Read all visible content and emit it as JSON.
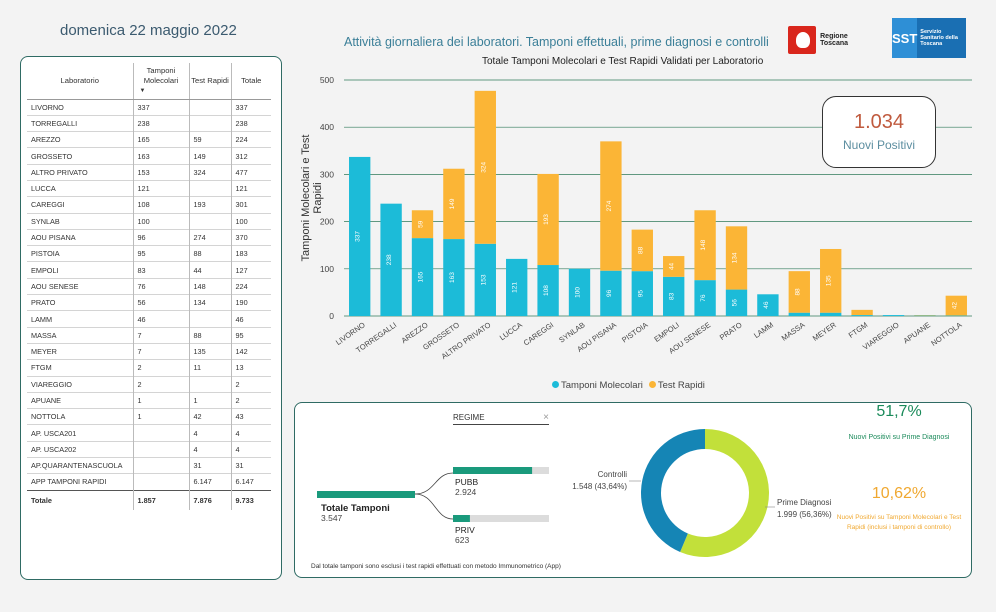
{
  "header": {
    "date": "domenica 22 maggio 2022",
    "title": "Attività giornaliera dei laboratori. Tamponi effettuali, prime diagnosi e controlli",
    "logo_regione": "Regione Toscana",
    "logo_sst_short": "SST",
    "logo_sst_long": "Servizio Sanitario della Toscana"
  },
  "table": {
    "headers": {
      "lab": "Laboratorio",
      "mol": "Tamponi Molecolari",
      "rap": "Test Rapidi",
      "tot": "Totale"
    },
    "rows": [
      [
        "LIVORNO",
        "337",
        "",
        "337"
      ],
      [
        "TORREGALLI",
        "238",
        "",
        "238"
      ],
      [
        "AREZZO",
        "165",
        "59",
        "224"
      ],
      [
        "GROSSETO",
        "163",
        "149",
        "312"
      ],
      [
        "ALTRO PRIVATO",
        "153",
        "324",
        "477"
      ],
      [
        "LUCCA",
        "121",
        "",
        "121"
      ],
      [
        "CAREGGI",
        "108",
        "193",
        "301"
      ],
      [
        "SYNLAB",
        "100",
        "",
        "100"
      ],
      [
        "AOU PISANA",
        "96",
        "274",
        "370"
      ],
      [
        "PISTOIA",
        "95",
        "88",
        "183"
      ],
      [
        "EMPOLI",
        "83",
        "44",
        "127"
      ],
      [
        "AOU SENESE",
        "76",
        "148",
        "224"
      ],
      [
        "PRATO",
        "56",
        "134",
        "190"
      ],
      [
        "LAMM",
        "46",
        "",
        "46"
      ],
      [
        "MASSA",
        "7",
        "88",
        "95"
      ],
      [
        "MEYER",
        "7",
        "135",
        "142"
      ],
      [
        "FTGM",
        "2",
        "11",
        "13"
      ],
      [
        "VIAREGGIO",
        "2",
        "",
        "2"
      ],
      [
        "APUANE",
        "1",
        "1",
        "2"
      ],
      [
        "NOTTOLA",
        "1",
        "42",
        "43"
      ],
      [
        "AP. USCA201",
        "",
        "4",
        "4"
      ],
      [
        "AP. USCA202",
        "",
        "4",
        "4"
      ],
      [
        "AP.QUARANTENASCUOLA",
        "",
        "31",
        "31"
      ],
      [
        "APP TAMPONI RAPIDI",
        "",
        "6.147",
        "6.147"
      ]
    ],
    "total": [
      "Totale",
      "1.857",
      "7.876",
      "9.733"
    ]
  },
  "kpi": {
    "value": "1.034",
    "label": "Nuovi Positivi"
  },
  "legend": {
    "mol": "Tamponi Molecolari",
    "rap": "Test Rapidi"
  },
  "colors": {
    "mol": "#1cbbd8",
    "rap": "#fbb536",
    "teal": "#1a9a7c",
    "donut_blue": "#1585b5",
    "donut_green": "#c2e03a",
    "green_pct": "#1a8a5a",
    "orange_pct": "#f0a830"
  },
  "chart_data": {
    "type": "bar",
    "title": "Totale Tamponi Molecolari e Test Rapidi Validati per Laboratorio",
    "ylabel": "Tamponi Molecolari e Test Rapidi",
    "ylim": [
      0,
      500
    ],
    "yticks": [
      0,
      100,
      200,
      300,
      400,
      500
    ],
    "stacked": true,
    "categories": [
      "LIVORNO",
      "TORREGALLI",
      "AREZZO",
      "GROSSETO",
      "ALTRO PRIVATO",
      "LUCCA",
      "CAREGGI",
      "SYNLAB",
      "AOU PISANA",
      "PISTOIA",
      "EMPOLI",
      "AOU SENESE",
      "PRATO",
      "LAMM",
      "MASSA",
      "MEYER",
      "FTGM",
      "VIAREGGIO",
      "APUANE",
      "NOTTOLA"
    ],
    "series": [
      {
        "name": "Tamponi Molecolari",
        "values": [
          337,
          238,
          165,
          163,
          153,
          121,
          108,
          100,
          96,
          95,
          83,
          76,
          56,
          46,
          7,
          7,
          2,
          2,
          1,
          1
        ]
      },
      {
        "name": "Test Rapidi",
        "values": [
          0,
          0,
          59,
          149,
          324,
          0,
          193,
          0,
          274,
          88,
          44,
          148,
          134,
          0,
          88,
          135,
          11,
          0,
          1,
          42
        ]
      }
    ]
  },
  "flow": {
    "total_label": "Totale Tamponi",
    "total_value": "3.547",
    "pubb_label": "PUBB",
    "pubb_value": "2.924",
    "pubb_share": 0.824,
    "priv_label": "PRIV",
    "priv_value": "623",
    "priv_share": 0.176,
    "regime": "REGIME"
  },
  "donut": {
    "controlli_label": "Controlli",
    "controlli_value": "1.548 (43,64%)",
    "controlli_share": 0.4364,
    "prime_label": "Prime Diagnosi",
    "prime_value": "1.999 (56,36%)",
    "prime_share": 0.5636
  },
  "stats": {
    "pct1": "51,7%",
    "pct1_label": "Nuovi Positivi su Prime Diagnosi",
    "pct2": "10,62%",
    "pct2_label": "Nuovi Positivi su Tamponi Molecolari e Test Rapidi (inclusi i tamponi di controllo)"
  },
  "footnote": "Dal totale tamponi sono esclusi i test rapidi effettuati con metodo Immunometrico (App)"
}
